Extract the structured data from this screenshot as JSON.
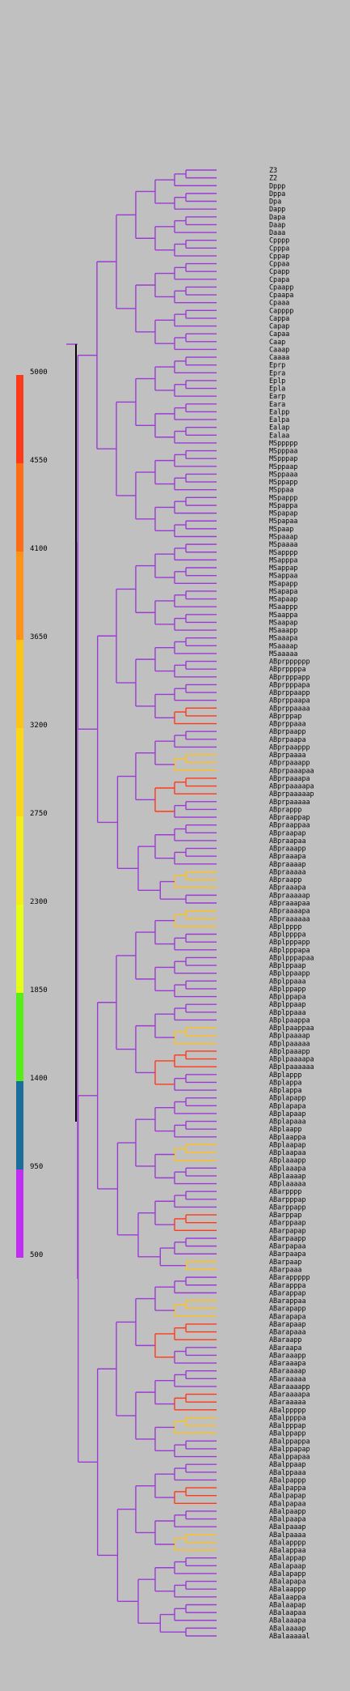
{
  "legend": {
    "ticks": [
      "5000",
      "4550",
      "4100",
      "3650",
      "3200",
      "2750",
      "2300",
      "1850",
      "1400",
      "950",
      "500"
    ],
    "colors": [
      "#ff3a17",
      "#ff6e17",
      "#ff9317",
      "#ffc317",
      "#ffd617",
      "#f3ec17",
      "#e6ff17",
      "#55ee17",
      "#1a6e9c",
      "#3b22e0",
      "#c02ef2"
    ]
  },
  "tree": {
    "line_color": "#9b3bd6",
    "root_color": "#000000",
    "leaves": [
      "Z3",
      "Z2",
      "Dppp",
      "Dppa",
      "Dpa",
      "Dapp",
      "Dapa",
      "Daap",
      "Daaa",
      "Cpppp",
      "Cpppa",
      "Cppap",
      "Cppaa",
      "Cpapp",
      "Cpapa",
      "Cpaapp",
      "Cpaapa",
      "Cpaaa",
      "Capppp",
      "Cappa",
      "Capap",
      "Capaa",
      "Caap",
      "Caaap",
      "Caaaa",
      "Eprp",
      "Epra",
      "Eplp",
      "Epla",
      "Earp",
      "Eara",
      "Ealpp",
      "Ealpa",
      "Ealap",
      "Ealaa",
      "MSppppp",
      "MSpppaa",
      "MSpppap",
      "MSppaap",
      "MSppaaa",
      "MSppapp",
      "MSppaa",
      "MSpappp",
      "MSpappa",
      "MSpapap",
      "MSpapaa",
      "MSpaap",
      "MSpaaap",
      "MSpaaaa",
      "MSapppp",
      "MSapppa",
      "MSappap",
      "MSappaa",
      "MSapapp",
      "MSapapa",
      "MSapaap",
      "MSaappp",
      "MSaappa",
      "MSaapap",
      "MSaaapp",
      "MSaaapa",
      "MSaaaap",
      "MSaaaaa",
      "ABprpppppp",
      "ABprppppa",
      "ABprpppapp",
      "ABprpppapa",
      "ABprppaapp",
      "ABprppaapa",
      "ABprppaaaa",
      "ABprppap",
      "ABprppaaa",
      "ABprpaapp",
      "ABprpaapa",
      "ABprpaappp",
      "ABprpaaaa",
      "ABprpaaapp",
      "ABprpaaapaa",
      "ABprpaaapa",
      "ABprpaaaapa",
      "ABprpaaaaap",
      "ABprpaaaaa",
      "ABprappp",
      "ABpraappap",
      "ABpraappaa",
      "ABpraapap",
      "ABpraapaa",
      "ABpraaapp",
      "ABpraaapa",
      "ABpraaaap",
      "ABpraaaaa",
      "ABpraapp",
      "ABpraaapa",
      "ABpraaaaap",
      "ABpraaapaa",
      "ABpraaaapa",
      "ABpraaaaaa",
      "ABplpppp",
      "ABplppppa",
      "ABplpppapp",
      "ABplpppapa",
      "ABplpppapaa",
      "ABplppaap",
      "ABplppaapp",
      "ABplppaaa",
      "ABplppapp",
      "ABplppapa",
      "ABplppaap",
      "ABplppaaa",
      "ABplpaappa",
      "ABplpaappaa",
      "ABplpaaaap",
      "ABplpaaaaa",
      "ABplpaaapp",
      "ABplpaaaapa",
      "ABplpaaaaaa",
      "ABplappp",
      "ABplappa",
      "ABplappa",
      "ABplapapp",
      "ABplapapa",
      "ABplapaap",
      "ABplapaaa",
      "ABplaapp",
      "ABplaappa",
      "ABplaapap",
      "ABplaapaa",
      "ABplaaapp",
      "ABplaaapa",
      "ABplaaaap",
      "ABplaaaaa",
      "ABarpppp",
      "ABarpppap",
      "ABarppapp",
      "ABarppap",
      "ABarppaap",
      "ABarpapap",
      "ABarpaapp",
      "ABarpapaa",
      "ABarpaapa",
      "ABarpaap",
      "ABarpaaa",
      "ABarappppp",
      "ABarapppa",
      "ABarappap",
      "ABarappaa",
      "ABarapapp",
      "ABarapapa",
      "ABarapaap",
      "ABarapaaa",
      "ABaraapp",
      "ABaraapa",
      "ABaraaapp",
      "ABaraaapa",
      "ABaraaaap",
      "ABaraaaaa",
      "ABaraaaapp",
      "ABaraaaapa",
      "ABaraaaaa",
      "ABalppppp",
      "ABalppppa",
      "ABalpppap",
      "ABalppapp",
      "ABalppappa",
      "ABalppapap",
      "ABalppapaa",
      "ABalppaap",
      "ABalppaaa",
      "ABalpappp",
      "ABalpappa",
      "ABalpapap",
      "ABalpapaa",
      "ABalpaapp",
      "ABalpaapa",
      "ABalpaaap",
      "ABalpaaaa",
      "ABalapppp",
      "ABalappaa",
      "ABalappap",
      "ABalapaap",
      "ABalapapp",
      "ABalapapa",
      "ABalaappp",
      "ABalaappa",
      "ABalaapap",
      "ABalaapaa",
      "ABalaaapa",
      "ABalaaaap",
      "ABalaaaaal"
    ]
  }
}
